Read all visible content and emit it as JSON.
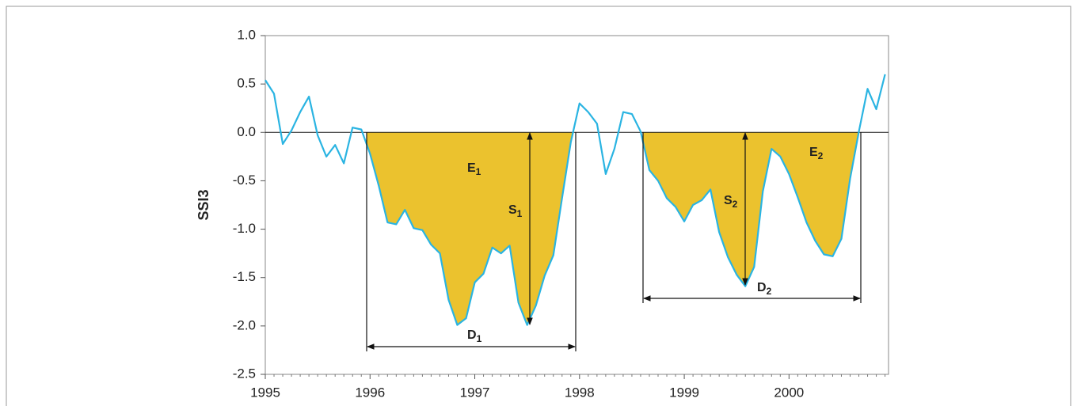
{
  "chart_data": {
    "type": "line",
    "y_label": "SSI3",
    "xlim": [
      1995,
      2000.95
    ],
    "ylim": [
      -2.5,
      1.0
    ],
    "xticks": [
      1995,
      1996,
      1997,
      1998,
      1999,
      2000
    ],
    "yticks": [
      {
        "value": 1.0,
        "label": "1.0"
      },
      {
        "value": 0.5,
        "label": "0.5"
      },
      {
        "value": 0.0,
        "label": "0.0"
      },
      {
        "value": -0.5,
        "label": "-0.5"
      },
      {
        "value": -1.0,
        "label": "-1.0"
      },
      {
        "value": -1.5,
        "label": "-1.5"
      },
      {
        "value": -2.0,
        "label": "-2.0"
      },
      {
        "value": -2.5,
        "label": "-2.5"
      }
    ],
    "line_color": "#2ab4e2",
    "fill_color": "#ebc22e",
    "x": [
      1995.0,
      1995.083,
      1995.167,
      1995.25,
      1995.333,
      1995.417,
      1995.5,
      1995.583,
      1995.667,
      1995.75,
      1995.833,
      1995.917,
      1996.0,
      1996.083,
      1996.167,
      1996.25,
      1996.333,
      1996.417,
      1996.5,
      1996.583,
      1996.667,
      1996.75,
      1996.833,
      1996.917,
      1997.0,
      1997.083,
      1997.167,
      1997.25,
      1997.333,
      1997.417,
      1997.5,
      1997.583,
      1997.667,
      1997.75,
      1997.833,
      1997.917,
      1998.0,
      1998.083,
      1998.167,
      1998.25,
      1998.333,
      1998.417,
      1998.5,
      1998.583,
      1998.667,
      1998.75,
      1998.833,
      1998.917,
      1999.0,
      1999.083,
      1999.167,
      1999.25,
      1999.333,
      1999.417,
      1999.5,
      1999.583,
      1999.667,
      1999.75,
      1999.833,
      1999.917,
      2000.0,
      2000.083,
      2000.167,
      2000.25,
      2000.333,
      2000.417,
      2000.5,
      2000.583,
      2000.667,
      2000.75,
      2000.833,
      2000.917
    ],
    "values": [
      0.54,
      0.4,
      -0.12,
      0.02,
      0.21,
      0.37,
      -0.03,
      -0.25,
      -0.13,
      -0.32,
      0.05,
      0.03,
      -0.22,
      -0.55,
      -0.93,
      -0.95,
      -0.8,
      -0.99,
      -1.01,
      -1.16,
      -1.25,
      -1.73,
      -1.99,
      -1.92,
      -1.55,
      -1.46,
      -1.19,
      -1.25,
      -1.17,
      -1.76,
      -1.99,
      -1.79,
      -1.48,
      -1.27,
      -0.68,
      -0.1,
      0.3,
      0.21,
      0.09,
      -0.43,
      -0.17,
      0.21,
      0.19,
      0.01,
      -0.39,
      -0.5,
      -0.68,
      -0.77,
      -0.92,
      -0.75,
      -0.7,
      -0.59,
      -1.03,
      -1.29,
      -1.47,
      -1.59,
      -1.39,
      -0.61,
      -0.17,
      -0.25,
      -0.43,
      -0.67,
      -0.93,
      -1.12,
      -1.26,
      -1.28,
      -1.1,
      -0.48,
      0.01,
      0.45,
      0.24,
      0.6
    ],
    "annotations": [
      {
        "text": "E",
        "sub": "1"
      },
      {
        "text": "S",
        "sub": "1"
      },
      {
        "text": "D",
        "sub": "1"
      },
      {
        "text": "E",
        "sub": "2"
      },
      {
        "text": "S",
        "sub": "2"
      },
      {
        "text": "D",
        "sub": "2"
      }
    ]
  }
}
